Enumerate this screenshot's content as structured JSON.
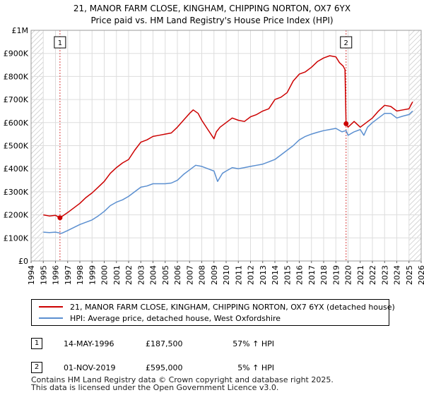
{
  "colors": {
    "property": "#cc0000",
    "hpi": "#5b8fd0",
    "grid": "#dddddd",
    "event_line": "#d84040",
    "hatch": "#bbbbbb"
  },
  "chart_data": {
    "type": "line",
    "title": "21, MANOR FARM CLOSE, KINGHAM, CHIPPING NORTON, OX7 6YX",
    "subtitle": "Price paid vs. HM Land Registry's House Price Index (HPI)",
    "xlim": [
      1994,
      2026
    ],
    "ylim": [
      0,
      1000000
    ],
    "x_ticks": [
      1994,
      1995,
      1996,
      1997,
      1998,
      1999,
      2000,
      2001,
      2002,
      2003,
      2004,
      2005,
      2006,
      2007,
      2008,
      2009,
      2010,
      2011,
      2012,
      2013,
      2014,
      2015,
      2016,
      2017,
      2018,
      2019,
      2020,
      2021,
      2022,
      2023,
      2024,
      2025,
      2026
    ],
    "x_tick_labels": [
      "1994",
      "1995",
      "1996",
      "1997",
      "1998",
      "1999",
      "2000",
      "2001",
      "2002",
      "2003",
      "2004",
      "2005",
      "2006",
      "2007",
      "2008",
      "2009",
      "2010",
      "2011",
      "2012",
      "2013",
      "2014",
      "2015",
      "2016",
      "2017",
      "2018",
      "2019",
      "2020",
      "2021",
      "2022",
      "2023",
      "2024",
      "2025",
      "2026"
    ],
    "y_ticks": [
      0,
      100000,
      200000,
      300000,
      400000,
      500000,
      600000,
      700000,
      800000,
      900000,
      1000000
    ],
    "y_tick_labels": [
      "£0",
      "£100K",
      "£200K",
      "£300K",
      "£400K",
      "£500K",
      "£600K",
      "£700K",
      "£800K",
      "£900K",
      "£1M"
    ],
    "grid": true,
    "series": [
      {
        "name": "21, MANOR FARM CLOSE, KINGHAM, CHIPPING NORTON, OX7 6YX (detached house)",
        "color": "#cc0000",
        "x": [
          1995.0,
          1995.5,
          1996.0,
          1996.37,
          1997.0,
          1997.5,
          1998.0,
          1998.5,
          1999.0,
          1999.5,
          2000.0,
          2000.5,
          2001.0,
          2001.5,
          2002.0,
          2002.5,
          2003.0,
          2003.5,
          2004.0,
          2004.5,
          2005.0,
          2005.5,
          2006.0,
          2006.5,
          2007.0,
          2007.3,
          2007.7,
          2008.0,
          2008.5,
          2009.0,
          2009.2,
          2009.5,
          2010.0,
          2010.5,
          2011.0,
          2011.5,
          2012.0,
          2012.5,
          2013.0,
          2013.5,
          2014.0,
          2014.5,
          2015.0,
          2015.5,
          2016.0,
          2016.5,
          2017.0,
          2017.5,
          2018.0,
          2018.5,
          2019.0,
          2019.3,
          2019.6,
          2019.75,
          2019.84,
          2020.0,
          2020.5,
          2021.0,
          2021.5,
          2022.0,
          2022.5,
          2023.0,
          2023.5,
          2024.0,
          2024.5,
          2025.0,
          2025.3
        ],
        "y": [
          200000,
          195000,
          198000,
          187500,
          210000,
          230000,
          250000,
          275000,
          295000,
          320000,
          345000,
          380000,
          405000,
          425000,
          440000,
          480000,
          515000,
          525000,
          540000,
          545000,
          550000,
          555000,
          580000,
          610000,
          640000,
          655000,
          640000,
          610000,
          570000,
          530000,
          560000,
          580000,
          600000,
          620000,
          610000,
          605000,
          625000,
          635000,
          650000,
          660000,
          700000,
          710000,
          730000,
          780000,
          810000,
          820000,
          840000,
          865000,
          880000,
          890000,
          885000,
          860000,
          845000,
          830000,
          595000,
          580000,
          605000,
          580000,
          600000,
          620000,
          650000,
          675000,
          670000,
          650000,
          655000,
          660000,
          690000
        ]
      },
      {
        "name": "HPI: Average price, detached house, West Oxfordshire",
        "color": "#5b8fd0",
        "x": [
          1995.0,
          1995.5,
          1996.0,
          1996.5,
          1997.0,
          1997.5,
          1998.0,
          1998.5,
          1999.0,
          1999.5,
          2000.0,
          2000.5,
          2001.0,
          2001.5,
          2002.0,
          2002.5,
          2003.0,
          2003.5,
          2004.0,
          2004.5,
          2005.0,
          2005.5,
          2006.0,
          2006.5,
          2007.0,
          2007.5,
          2008.0,
          2008.5,
          2009.0,
          2009.3,
          2009.7,
          2010.0,
          2010.5,
          2011.0,
          2011.5,
          2012.0,
          2012.5,
          2013.0,
          2013.5,
          2014.0,
          2014.5,
          2015.0,
          2015.5,
          2016.0,
          2016.5,
          2017.0,
          2017.5,
          2018.0,
          2018.5,
          2019.0,
          2019.5,
          2019.84,
          2020.0,
          2020.5,
          2021.0,
          2021.3,
          2021.6,
          2022.0,
          2022.5,
          2023.0,
          2023.5,
          2024.0,
          2024.5,
          2025.0,
          2025.3
        ],
        "y": [
          125000,
          123000,
          125000,
          120000,
          132000,
          145000,
          158000,
          168000,
          178000,
          195000,
          215000,
          240000,
          255000,
          265000,
          280000,
          300000,
          320000,
          325000,
          335000,
          335000,
          335000,
          338000,
          350000,
          375000,
          395000,
          415000,
          410000,
          400000,
          390000,
          345000,
          380000,
          390000,
          405000,
          400000,
          405000,
          410000,
          415000,
          420000,
          430000,
          440000,
          460000,
          480000,
          500000,
          525000,
          540000,
          550000,
          558000,
          565000,
          570000,
          575000,
          560000,
          565000,
          545000,
          560000,
          570000,
          545000,
          580000,
          600000,
          620000,
          640000,
          640000,
          620000,
          628000,
          635000,
          650000
        ]
      }
    ],
    "events": [
      {
        "label": "1",
        "x": 1996.37,
        "y": 187500
      },
      {
        "label": "2",
        "x": 2019.84,
        "y": 595000
      }
    ]
  },
  "legend": {
    "items": [
      {
        "label": "21, MANOR FARM CLOSE, KINGHAM, CHIPPING NORTON, OX7 6YX (detached house)",
        "color": "#cc0000"
      },
      {
        "label": "HPI: Average price, detached house, West Oxfordshire",
        "color": "#5b8fd0"
      }
    ]
  },
  "events_table": [
    {
      "num": "1",
      "date": "14-MAY-1996",
      "price": "£187,500",
      "hpi": "57% ↑ HPI"
    },
    {
      "num": "2",
      "date": "01-NOV-2019",
      "price": "£595,000",
      "hpi": "5% ↑ HPI"
    }
  ],
  "footer": {
    "line1": "Contains HM Land Registry data © Crown copyright and database right 2025.",
    "line2": "This data is licensed under the Open Government Licence v3.0."
  }
}
